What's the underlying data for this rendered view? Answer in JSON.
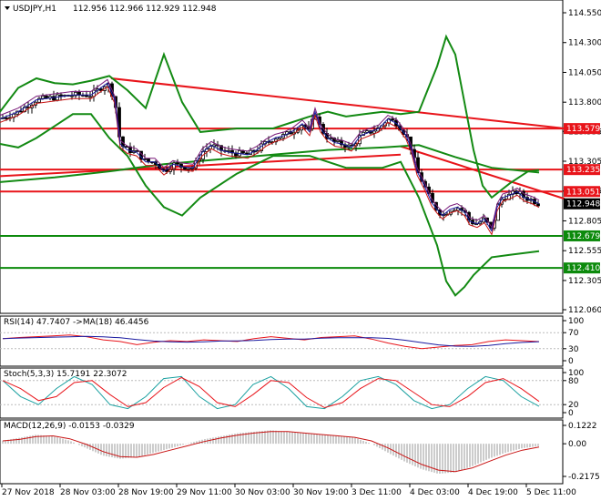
{
  "header": {
    "symbol_label": "USDJPY,H1",
    "ohlc": "112.956 112.966 112.929 112.948"
  },
  "price_axis": {
    "ticks": [
      "114.550",
      "114.300",
      "114.050",
      "113.800",
      "113.555",
      "113.305",
      "113.055",
      "112.805",
      "112.555",
      "112.305",
      "112.060"
    ],
    "current_price": "112.948"
  },
  "levels": [
    {
      "value": "113.579",
      "color": "#e8141a"
    },
    {
      "value": "113.235",
      "color": "#e8141a"
    },
    {
      "value": "113.051",
      "color": "#e8141a"
    },
    {
      "value": "112.679",
      "color": "#0c8a0c"
    },
    {
      "value": "112.410",
      "color": "#0c8a0c"
    }
  ],
  "rsi": {
    "label": "RSI(14) 47.7407  ->MA(18) 46.4456",
    "ticks": [
      "100",
      "70",
      "30",
      "0"
    ]
  },
  "stoch": {
    "label": "Stoch(5,3,3) 15.7191 22.3072",
    "ticks": [
      "100",
      "80",
      "20",
      "0"
    ]
  },
  "macd": {
    "label": "MACD(12,26,9) -0.0153 -0.0329",
    "ticks": [
      "0.1222",
      "0.00",
      "-0.2175"
    ]
  },
  "time_axis": {
    "labels": [
      "27 Nov 2018",
      "28 Nov 03:00",
      "28 Nov 19:00",
      "29 Nov 11:00",
      "30 Nov 03:00",
      "30 Nov 19:00",
      "3 Dec 11:00",
      "4 Dec 03:00",
      "4 Dec 19:00",
      "5 Dec 11:00"
    ]
  },
  "colors": {
    "bollinger": "#138a13",
    "trendline": "#e8141a",
    "rsi_line": "#e8141a",
    "rsi_ma": "#1a1aa0",
    "stoch_main": "#1aa0a0",
    "stoch_signal": "#e8141a",
    "macd_hist": "#9a9a9a",
    "macd_signal": "#c81414"
  },
  "chart_data": {
    "type": "line",
    "title": "USDJPY,H1",
    "ylim": [
      112.06,
      114.62
    ],
    "price_path": [
      [
        0,
        113.66
      ],
      [
        20,
        113.72
      ],
      [
        40,
        113.82
      ],
      [
        60,
        113.84
      ],
      [
        80,
        113.86
      ],
      [
        100,
        113.86
      ],
      [
        118,
        113.96
      ],
      [
        126,
        113.82
      ],
      [
        132,
        113.45
      ],
      [
        140,
        113.4
      ],
      [
        150,
        113.38
      ],
      [
        160,
        113.3
      ],
      [
        170,
        113.3
      ],
      [
        180,
        113.22
      ],
      [
        190,
        113.28
      ],
      [
        200,
        113.26
      ],
      [
        212,
        113.25
      ],
      [
        222,
        113.38
      ],
      [
        232,
        113.44
      ],
      [
        242,
        113.4
      ],
      [
        252,
        113.38
      ],
      [
        262,
        113.37
      ],
      [
        272,
        113.36
      ],
      [
        282,
        113.4
      ],
      [
        292,
        113.46
      ],
      [
        302,
        113.5
      ],
      [
        312,
        113.52
      ],
      [
        322,
        113.56
      ],
      [
        332,
        113.62
      ],
      [
        340,
        113.55
      ],
      [
        346,
        113.72
      ],
      [
        352,
        113.58
      ],
      [
        360,
        113.5
      ],
      [
        368,
        113.46
      ],
      [
        376,
        113.45
      ],
      [
        386,
        113.42
      ],
      [
        396,
        113.52
      ],
      [
        406,
        113.55
      ],
      [
        416,
        113.58
      ],
      [
        426,
        113.66
      ],
      [
        436,
        113.62
      ],
      [
        446,
        113.52
      ],
      [
        452,
        113.4
      ],
      [
        458,
        113.22
      ],
      [
        466,
        113.1
      ],
      [
        474,
        112.96
      ],
      [
        480,
        112.9
      ],
      [
        486,
        112.85
      ],
      [
        494,
        112.9
      ],
      [
        502,
        112.92
      ],
      [
        510,
        112.88
      ],
      [
        516,
        112.8
      ],
      [
        524,
        112.78
      ],
      [
        532,
        112.82
      ],
      [
        540,
        112.72
      ],
      [
        546,
        112.92
      ],
      [
        552,
        113.0
      ],
      [
        560,
        113.02
      ],
      [
        568,
        113.05
      ],
      [
        576,
        113.0
      ],
      [
        584,
        112.98
      ],
      [
        592,
        112.948
      ]
    ],
    "bb_upper": [
      [
        0,
        113.72
      ],
      [
        20,
        113.92
      ],
      [
        40,
        114.0
      ],
      [
        60,
        113.96
      ],
      [
        80,
        113.95
      ],
      [
        100,
        113.98
      ],
      [
        120,
        114.02
      ],
      [
        140,
        113.9
      ],
      [
        160,
        113.75
      ],
      [
        180,
        114.2
      ],
      [
        200,
        113.8
      ],
      [
        220,
        113.55
      ],
      [
        260,
        113.58
      ],
      [
        300,
        113.58
      ],
      [
        340,
        113.68
      ],
      [
        360,
        113.72
      ],
      [
        380,
        113.68
      ],
      [
        400,
        113.7
      ],
      [
        420,
        113.72
      ],
      [
        440,
        113.7
      ],
      [
        460,
        113.72
      ],
      [
        480,
        114.1
      ],
      [
        490,
        114.35
      ],
      [
        500,
        114.2
      ],
      [
        510,
        113.8
      ],
      [
        520,
        113.4
      ],
      [
        530,
        113.1
      ],
      [
        540,
        113.0
      ],
      [
        560,
        113.12
      ],
      [
        580,
        113.22
      ],
      [
        592,
        113.23
      ]
    ],
    "bb_lower": [
      [
        0,
        113.45
      ],
      [
        20,
        113.42
      ],
      [
        40,
        113.5
      ],
      [
        60,
        113.6
      ],
      [
        80,
        113.7
      ],
      [
        100,
        113.7
      ],
      [
        120,
        113.5
      ],
      [
        140,
        113.35
      ],
      [
        160,
        113.1
      ],
      [
        180,
        112.92
      ],
      [
        200,
        112.85
      ],
      [
        220,
        113.0
      ],
      [
        260,
        113.2
      ],
      [
        300,
        113.35
      ],
      [
        340,
        113.35
      ],
      [
        380,
        113.25
      ],
      [
        420,
        113.25
      ],
      [
        440,
        113.3
      ],
      [
        460,
        113.0
      ],
      [
        480,
        112.6
      ],
      [
        490,
        112.3
      ],
      [
        500,
        112.18
      ],
      [
        510,
        112.25
      ],
      [
        520,
        112.35
      ],
      [
        540,
        112.5
      ],
      [
        560,
        112.52
      ],
      [
        592,
        112.55
      ]
    ],
    "ma_slow": [
      [
        0,
        113.13
      ],
      [
        60,
        113.17
      ],
      [
        120,
        113.22
      ],
      [
        180,
        113.28
      ],
      [
        240,
        113.32
      ],
      [
        300,
        113.36
      ],
      [
        360,
        113.4
      ],
      [
        420,
        113.42
      ],
      [
        460,
        113.44
      ],
      [
        500,
        113.34
      ],
      [
        540,
        113.25
      ],
      [
        592,
        113.21
      ]
    ],
    "trendlines": [
      {
        "from": [
          0,
          113.18
        ],
        "to": [
          440,
          113.36
        ]
      },
      {
        "from": [
          122,
          114.0
        ],
        "to": [
          620,
          113.58
        ]
      },
      {
        "from": [
          440,
          113.43
        ],
        "to": [
          620,
          112.99
        ]
      }
    ],
    "rsi_values": [
      55,
      58,
      60,
      62,
      64,
      60,
      52,
      48,
      40,
      46,
      50,
      48,
      52,
      50,
      48,
      55,
      60,
      56,
      52,
      58,
      60,
      62,
      54,
      44,
      36,
      30,
      34,
      38,
      40,
      48,
      52,
      50,
      47.7
    ],
    "stoch_values": [
      80,
      40,
      20,
      60,
      90,
      70,
      20,
      10,
      40,
      85,
      90,
      40,
      10,
      20,
      70,
      90,
      60,
      15,
      10,
      40,
      80,
      90,
      70,
      30,
      10,
      20,
      60,
      90,
      80,
      40,
      15.7
    ],
    "macd_values": [
      0.02,
      0.04,
      0.06,
      0.05,
      0.02,
      -0.03,
      -0.08,
      -0.1,
      -0.09,
      -0.06,
      -0.03,
      0.0,
      0.03,
      0.05,
      0.07,
      0.08,
      0.09,
      0.08,
      0.07,
      0.06,
      0.05,
      0.04,
      0.0,
      -0.06,
      -0.12,
      -0.17,
      -0.2,
      -0.19,
      -0.15,
      -0.1,
      -0.06,
      -0.03,
      -0.015
    ]
  }
}
